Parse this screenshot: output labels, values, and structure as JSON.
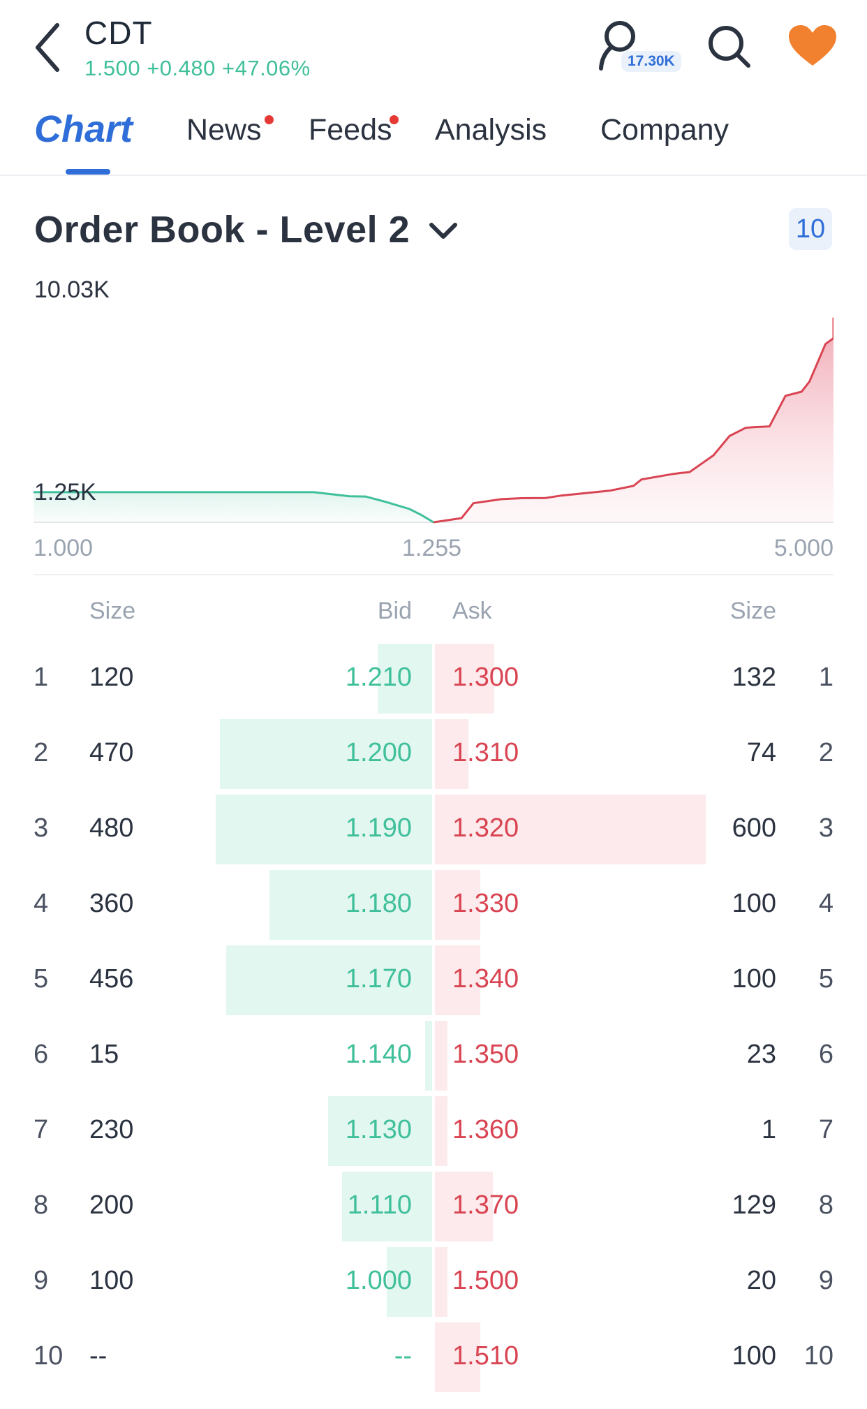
{
  "header": {
    "ticker": "CDT",
    "quote": "1.500 +0.480 +47.06%",
    "followers": "17.30K"
  },
  "tabs": [
    {
      "label": "Chart",
      "active": true,
      "dot": false
    },
    {
      "label": "News",
      "active": false,
      "dot": true
    },
    {
      "label": "Feeds",
      "active": false,
      "dot": true
    },
    {
      "label": "Analysis",
      "active": false,
      "dot": false
    },
    {
      "label": "Company",
      "active": false,
      "dot": false
    }
  ],
  "section": {
    "title": "Order Book - Level 2",
    "depth": "10"
  },
  "chart_data": {
    "type": "area",
    "y_max_label": "10.03K",
    "y_ref_label": "1.25K",
    "x_ticks": [
      "1.000",
      "1.255",
      "5.000"
    ],
    "ylim": [
      0,
      10030
    ],
    "grid": false,
    "series": [
      {
        "side": "bid",
        "color": "#3fbf9a",
        "points": [
          [
            0.0,
            1250
          ],
          [
            0.35,
            1250
          ],
          [
            0.395,
            1080
          ],
          [
            0.415,
            1070
          ],
          [
            0.44,
            850
          ],
          [
            0.47,
            550
          ],
          [
            0.485,
            300
          ],
          [
            0.5,
            0
          ]
        ]
      },
      {
        "side": "ask",
        "color": "#d94452",
        "points": [
          [
            0.5,
            0
          ],
          [
            0.51,
            50
          ],
          [
            0.535,
            170
          ],
          [
            0.55,
            790
          ],
          [
            0.585,
            960
          ],
          [
            0.61,
            1000
          ],
          [
            0.64,
            1010
          ],
          [
            0.66,
            1110
          ],
          [
            0.72,
            1310
          ],
          [
            0.75,
            1510
          ],
          [
            0.76,
            1780
          ],
          [
            0.8,
            2010
          ],
          [
            0.81,
            2050
          ],
          [
            0.82,
            2080
          ],
          [
            0.85,
            2780
          ],
          [
            0.87,
            3580
          ],
          [
            0.89,
            3920
          ],
          [
            0.9,
            3950
          ],
          [
            0.92,
            3980
          ],
          [
            0.94,
            5250
          ],
          [
            0.96,
            5420
          ],
          [
            0.97,
            5840
          ],
          [
            0.99,
            7400
          ],
          [
            1.0,
            7640
          ],
          [
            1.02,
            8040
          ],
          [
            1.0,
            8500
          ]
        ]
      }
    ],
    "bid_color": "#3fbf9a",
    "ask_color": "#d94452"
  },
  "order_book": {
    "headers": {
      "size_left": "Size",
      "bid": "Bid",
      "ask": "Ask",
      "size_right": "Size"
    },
    "max_size": 600,
    "rows": [
      {
        "rank": "1",
        "bid_size": "120",
        "bid": "1.210",
        "ask": "1.300",
        "ask_size": "132"
      },
      {
        "rank": "2",
        "bid_size": "470",
        "bid": "1.200",
        "ask": "1.310",
        "ask_size": "74"
      },
      {
        "rank": "3",
        "bid_size": "480",
        "bid": "1.190",
        "ask": "1.320",
        "ask_size": "600"
      },
      {
        "rank": "4",
        "bid_size": "360",
        "bid": "1.180",
        "ask": "1.330",
        "ask_size": "100"
      },
      {
        "rank": "5",
        "bid_size": "456",
        "bid": "1.170",
        "ask": "1.340",
        "ask_size": "100"
      },
      {
        "rank": "6",
        "bid_size": "15",
        "bid": "1.140",
        "ask": "1.350",
        "ask_size": "23"
      },
      {
        "rank": "7",
        "bid_size": "230",
        "bid": "1.130",
        "ask": "1.360",
        "ask_size": "1"
      },
      {
        "rank": "8",
        "bid_size": "200",
        "bid": "1.110",
        "ask": "1.370",
        "ask_size": "129"
      },
      {
        "rank": "9",
        "bid_size": "100",
        "bid": "1.000",
        "ask": "1.500",
        "ask_size": "20"
      },
      {
        "rank": "10",
        "bid_size": "--",
        "bid": "--",
        "ask": "1.510",
        "ask_size": "100"
      }
    ]
  }
}
